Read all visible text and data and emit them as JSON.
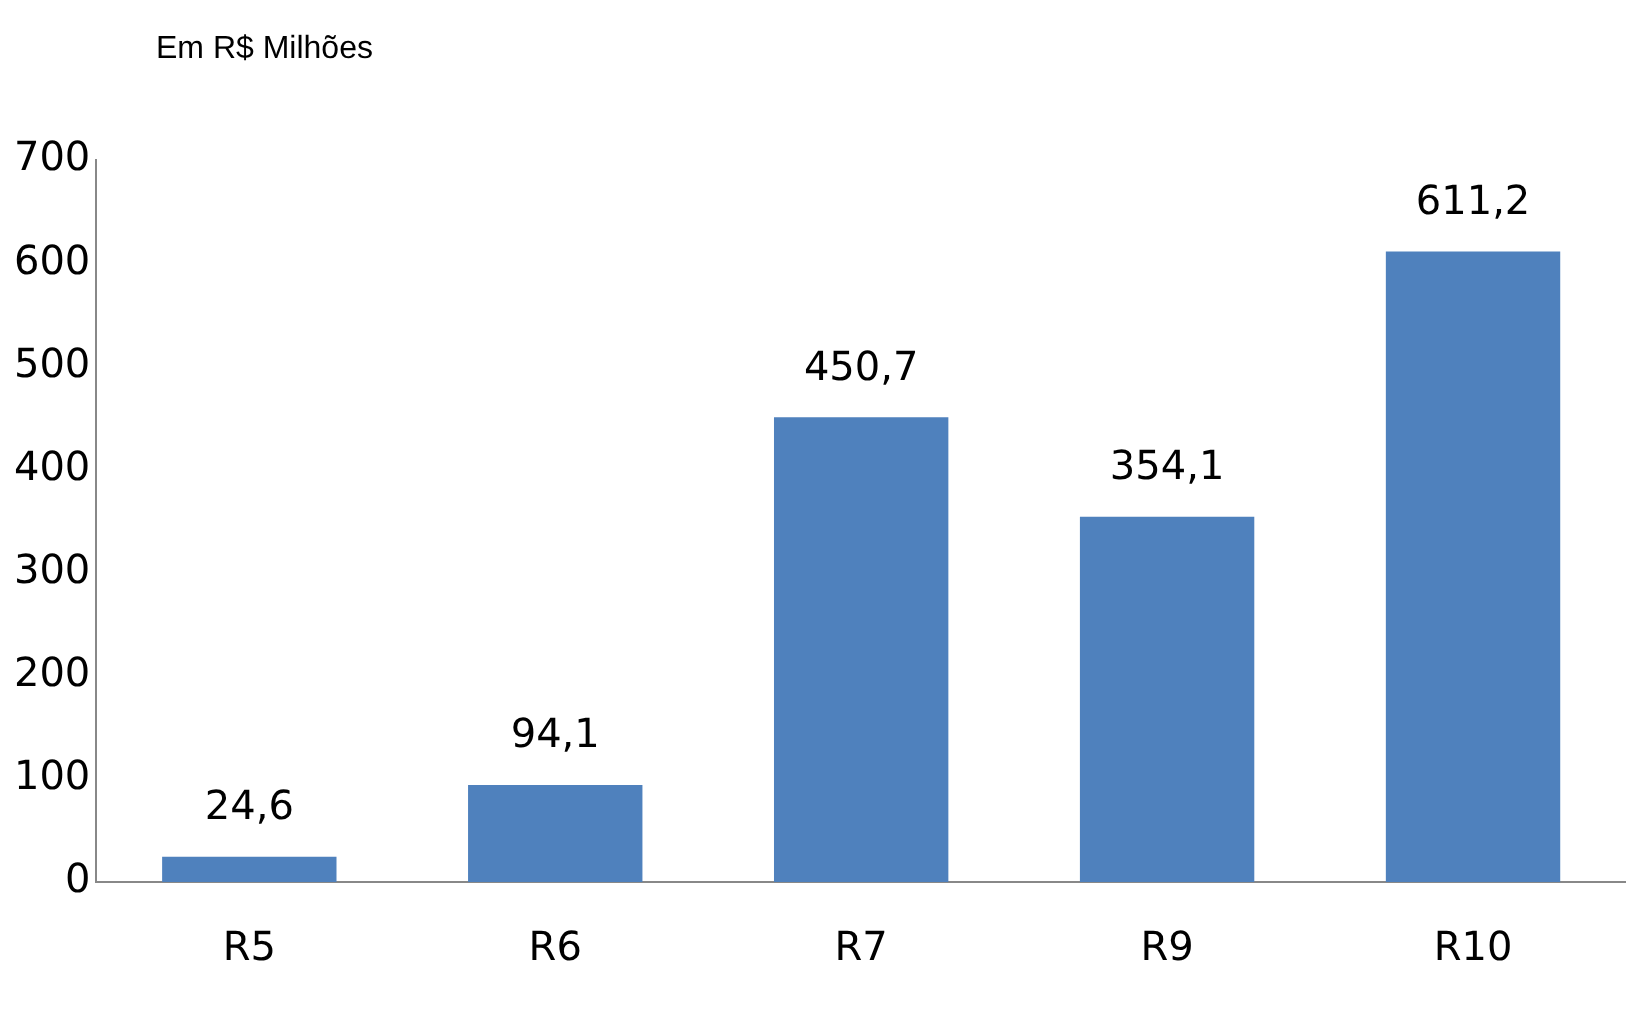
{
  "chart_data": {
    "type": "bar",
    "ylabel": "Em R$ Milhões",
    "categories": [
      "R5",
      "R6",
      "R7",
      "R9",
      "R10"
    ],
    "values": [
      24.6,
      94.1,
      450.7,
      354.1,
      611.2
    ],
    "value_labels": [
      "24,6",
      "94,1",
      "450,7",
      "354,1",
      "611,2"
    ],
    "color": "#4f81bd",
    "ylim": [
      0,
      700
    ],
    "yticks": [
      0,
      100,
      200,
      300,
      400,
      500,
      600,
      700
    ],
    "grid": false,
    "legend": false
  }
}
